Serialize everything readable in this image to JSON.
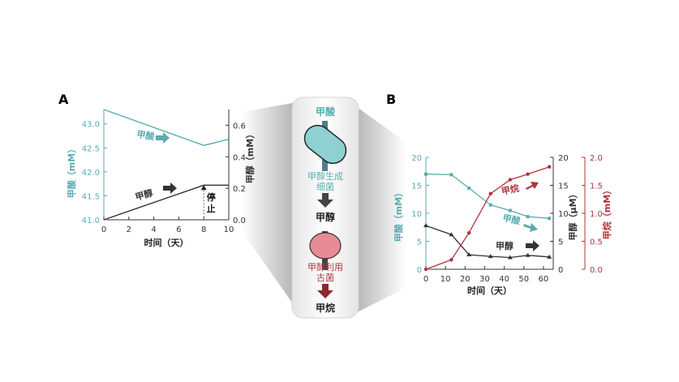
{
  "panel_a": {
    "label": "A",
    "stop_label": "停止",
    "chart_data": {
      "type": "line",
      "xlabel": "时间（天）",
      "xlim": [
        0,
        10
      ],
      "xticks": [
        0,
        2,
        4,
        6,
        8,
        10
      ],
      "left_axis": {
        "label": "甲酸（mM）",
        "color": "#5aabb0",
        "ylim": [
          41.0,
          43.3
        ],
        "ticks": [
          "41.0",
          "41.5",
          "42.0",
          "42.5",
          "43.0"
        ]
      },
      "right_axis": {
        "label": "甲醇（mM）",
        "color": "#333333",
        "ylim": [
          0,
          0.7
        ],
        "ticks": [
          "0.0",
          "0.2",
          "0.4",
          "0.6"
        ]
      },
      "series": [
        {
          "name": "甲酸",
          "axis": "left",
          "color": "#5aabb0",
          "x": [
            0,
            8,
            10
          ],
          "y": [
            43.3,
            42.55,
            42.68
          ]
        },
        {
          "name": "甲醇",
          "axis": "right",
          "color": "#333333",
          "x": [
            0,
            8,
            10
          ],
          "y": [
            0.0,
            0.22,
            0.22
          ]
        }
      ]
    }
  },
  "diagram": {
    "top_label": "甲酸",
    "bacteria_label": "甲醇生成\n细菌",
    "mid_label": "甲醇",
    "archaea_label": "甲醇利用\n古菌",
    "bottom_label": "甲烷",
    "colors": {
      "formate": "#5aabb0",
      "bacteria": "#8fd0d3",
      "archaea": "#e88a94",
      "methane": "#8b2a2f"
    }
  },
  "panel_b": {
    "label": "B",
    "chart_data": {
      "type": "line",
      "xlabel": "时间（天）",
      "xlim": [
        0,
        65
      ],
      "xticks": [
        0,
        10,
        20,
        30,
        40,
        50,
        60
      ],
      "axes": [
        {
          "label": "甲酸（mM）",
          "color": "#5aabb0",
          "ylim": [
            0,
            20
          ],
          "ticks": [
            "0",
            "5",
            "10",
            "15",
            "20"
          ]
        },
        {
          "label": "甲醇（μM）",
          "color": "#333333",
          "ylim": [
            0,
            20
          ],
          "ticks": [
            "0",
            "5",
            "10",
            "15",
            "20"
          ]
        },
        {
          "label": "甲烷（mM）",
          "color": "#b0343c",
          "ylim": [
            0,
            2.0
          ],
          "ticks": [
            "0.0",
            "0.5",
            "1.0",
            "1.5",
            "2.0"
          ]
        }
      ],
      "series": [
        {
          "name": "甲酸",
          "axis": 0,
          "color": "#5aabb0",
          "marker": "square",
          "x": [
            0,
            13,
            22,
            33,
            43,
            52,
            63
          ],
          "y": [
            17.0,
            16.9,
            14.5,
            11.5,
            10.5,
            9.4,
            9.1
          ]
        },
        {
          "name": "甲醇",
          "axis": 1,
          "color": "#333333",
          "marker": "triangle",
          "x": [
            0,
            13,
            22,
            33,
            43,
            52,
            63
          ],
          "y": [
            7.8,
            6.2,
            2.6,
            2.3,
            2.1,
            2.5,
            2.2
          ]
        },
        {
          "name": "甲烷",
          "axis": 2,
          "color": "#b0343c",
          "marker": "circle",
          "x": [
            0,
            13,
            22,
            33,
            43,
            52,
            63
          ],
          "y": [
            0.0,
            0.17,
            0.65,
            1.35,
            1.6,
            1.7,
            1.83
          ]
        }
      ]
    }
  }
}
